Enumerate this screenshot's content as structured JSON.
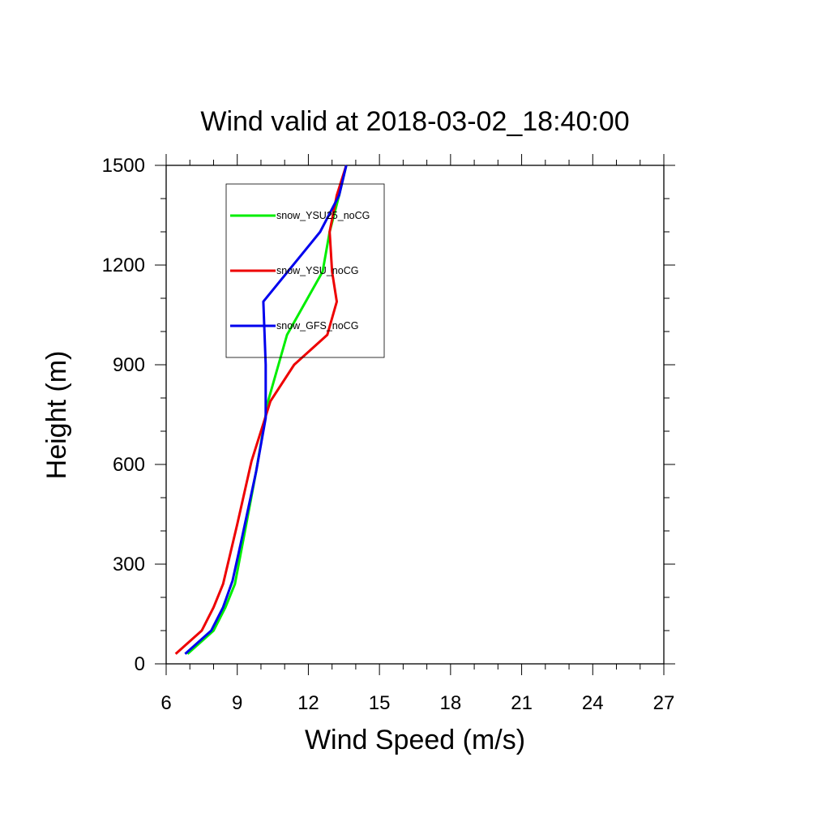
{
  "chart_data": {
    "type": "line",
    "title": "Wind valid at 2018-03-02_18:40:00",
    "xlabel": "Wind Speed (m/s)",
    "ylabel": "Height (m)",
    "xlim": [
      6,
      27
    ],
    "ylim": [
      0,
      1500
    ],
    "xticks": [
      "6",
      "9",
      "12",
      "15",
      "18",
      "21",
      "24",
      "27"
    ],
    "yticks": [
      "0",
      "300",
      "600",
      "900",
      "1200",
      "1500"
    ],
    "grid": false,
    "legend_position": "top-left",
    "series": [
      {
        "name": "snow_YSU25_noCG",
        "color": "#00ee00",
        "points": [
          [
            6.9,
            30
          ],
          [
            8.0,
            100
          ],
          [
            8.5,
            170
          ],
          [
            8.9,
            240
          ],
          [
            9.3,
            390
          ],
          [
            9.8,
            580
          ],
          [
            10.3,
            790
          ],
          [
            11.1,
            990
          ],
          [
            12.6,
            1180
          ],
          [
            12.9,
            1300
          ],
          [
            13.3,
            1410
          ],
          [
            13.6,
            1500
          ]
        ]
      },
      {
        "name": "snow_YSU_noCG",
        "color": "#ee0000",
        "points": [
          [
            6.4,
            30
          ],
          [
            7.5,
            100
          ],
          [
            8.0,
            170
          ],
          [
            8.4,
            240
          ],
          [
            9.0,
            420
          ],
          [
            9.6,
            610
          ],
          [
            10.4,
            790
          ],
          [
            11.4,
            900
          ],
          [
            12.8,
            990
          ],
          [
            13.2,
            1090
          ],
          [
            13.0,
            1180
          ],
          [
            12.9,
            1300
          ],
          [
            13.2,
            1410
          ],
          [
            13.6,
            1500
          ]
        ]
      },
      {
        "name": "snow_GFS_noCG",
        "color": "#0000ee",
        "points": [
          [
            6.8,
            30
          ],
          [
            7.9,
            100
          ],
          [
            8.4,
            170
          ],
          [
            8.8,
            250
          ],
          [
            9.2,
            380
          ],
          [
            9.8,
            580
          ],
          [
            10.2,
            740
          ],
          [
            10.2,
            900
          ],
          [
            10.1,
            1090
          ],
          [
            12.5,
            1300
          ],
          [
            13.3,
            1410
          ],
          [
            13.6,
            1500
          ]
        ]
      }
    ]
  }
}
